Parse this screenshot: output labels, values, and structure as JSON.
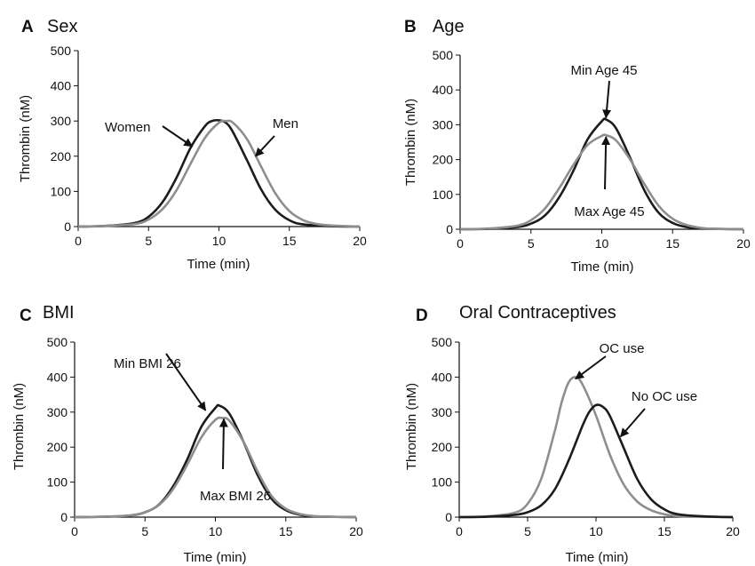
{
  "chart_data": [
    {
      "type": "line",
      "panel_letter": "A",
      "title": "Sex",
      "xlabel": "Time (min)",
      "ylabel": "Thrombin (nM)",
      "xlim": [
        0,
        20
      ],
      "ylim": [
        0,
        500
      ],
      "xticks": [
        "0",
        "5",
        "10",
        "15",
        "20"
      ],
      "yticks": [
        "0",
        "100",
        "200",
        "300",
        "400",
        "500"
      ],
      "grid": false,
      "series": [
        {
          "label": "Women",
          "color": "#1c1c1c",
          "x": [
            0,
            2,
            4,
            5,
            6,
            7,
            8,
            9,
            9.5,
            10,
            10.5,
            11,
            12,
            13,
            14,
            15,
            16,
            18,
            20
          ],
          "y": [
            0,
            2,
            10,
            28,
            70,
            140,
            225,
            285,
            300,
            302,
            295,
            268,
            188,
            105,
            48,
            18,
            6,
            1,
            0
          ]
        },
        {
          "label": "Men",
          "color": "#8e8e8e",
          "x": [
            0,
            2,
            4,
            5,
            6,
            7,
            8,
            9,
            10,
            10.5,
            11,
            12,
            13,
            14,
            15,
            16,
            17,
            18,
            20
          ],
          "y": [
            0,
            2,
            7,
            20,
            50,
            104,
            180,
            252,
            295,
            300,
            295,
            248,
            170,
            95,
            44,
            18,
            7,
            3,
            0
          ]
        }
      ],
      "annotations": [
        {
          "text": "Women",
          "points_to": {
            "x": 8.1,
            "y": 228
          }
        },
        {
          "text": "Men",
          "points_to": {
            "x": 12.6,
            "y": 200
          }
        }
      ]
    },
    {
      "type": "line",
      "panel_letter": "B",
      "title": "Age",
      "xlabel": "Time (min)",
      "ylabel": "Thrombin (nM)",
      "xlim": [
        0,
        20
      ],
      "ylim": [
        0,
        500
      ],
      "xticks": [
        "0",
        "5",
        "10",
        "15",
        "20"
      ],
      "yticks": [
        "0",
        "100",
        "200",
        "300",
        "400",
        "500"
      ],
      "grid": false,
      "series": [
        {
          "label": "Min Age 45",
          "color": "#1c1c1c",
          "x": [
            0,
            2,
            4,
            5,
            6,
            7,
            8,
            9,
            10,
            10.3,
            11,
            12,
            13,
            14,
            15,
            16,
            17,
            18,
            20
          ],
          "y": [
            0,
            1,
            6,
            16,
            40,
            92,
            168,
            258,
            310,
            315,
            290,
            205,
            112,
            48,
            18,
            6,
            2,
            1,
            0
          ]
        },
        {
          "label": "Max Age 45",
          "color": "#8e8e8e",
          "x": [
            0,
            2,
            4,
            5,
            6,
            7,
            8,
            9,
            10,
            10.3,
            11,
            12,
            13,
            14,
            15,
            16,
            17,
            18,
            20
          ],
          "y": [
            0,
            2,
            10,
            26,
            60,
            118,
            185,
            242,
            268,
            270,
            255,
            200,
            130,
            68,
            30,
            12,
            4,
            1,
            0
          ]
        }
      ],
      "annotations": [
        {
          "text": "Min Age 45",
          "points_to": {
            "x": 10.3,
            "y": 320
          }
        },
        {
          "text": "Max Age 45",
          "points_to": {
            "x": 10.3,
            "y": 265
          }
        }
      ]
    },
    {
      "type": "line",
      "panel_letter": "C",
      "title": "BMI",
      "xlabel": "Time (min)",
      "ylabel": "Thrombin (nM)",
      "xlim": [
        0,
        20
      ],
      "ylim": [
        0,
        500
      ],
      "xticks": [
        "0",
        "5",
        "10",
        "15",
        "20"
      ],
      "yticks": [
        "0",
        "100",
        "200",
        "300",
        "400",
        "500"
      ],
      "grid": false,
      "series": [
        {
          "label": "Min BMI 26",
          "color": "#1c1c1c",
          "x": [
            0,
            2,
            4,
            5,
            6,
            7,
            8,
            9,
            10,
            10.3,
            11,
            12,
            13,
            14,
            15,
            16,
            17,
            18,
            20
          ],
          "y": [
            0,
            1,
            5,
            14,
            36,
            88,
            165,
            258,
            312,
            318,
            295,
            215,
            120,
            52,
            20,
            7,
            2,
            1,
            0
          ]
        },
        {
          "label": "Max BMI 26",
          "color": "#8e8e8e",
          "x": [
            0,
            2,
            4,
            5,
            6,
            7,
            8,
            9,
            10,
            10.5,
            11,
            12,
            13,
            14,
            15,
            16,
            17,
            18,
            20
          ],
          "y": [
            0,
            1,
            5,
            14,
            35,
            80,
            150,
            228,
            278,
            283,
            275,
            215,
            130,
            60,
            24,
            9,
            3,
            1,
            0
          ]
        }
      ],
      "annotations": [
        {
          "text": "Min BMI 26",
          "points_to": {
            "x": 9.3,
            "y": 305
          }
        },
        {
          "text": "Max BMI 26",
          "points_to": {
            "x": 10.6,
            "y": 280
          }
        }
      ]
    },
    {
      "type": "line",
      "panel_letter": "D",
      "title": "Oral Contraceptives",
      "xlabel": "Time (min)",
      "ylabel": "Thrombin (nM)",
      "xlim": [
        0,
        20
      ],
      "ylim": [
        0,
        500
      ],
      "xticks": [
        "0",
        "5",
        "10",
        "15",
        "20"
      ],
      "yticks": [
        "0",
        "100",
        "200",
        "300",
        "400",
        "500"
      ],
      "grid": false,
      "series": [
        {
          "label": "OC use",
          "color": "#8e8e8e",
          "x": [
            0,
            2,
            4,
            5,
            6,
            7,
            7.5,
            8,
            8.5,
            9,
            10,
            11,
            12,
            13,
            14,
            15,
            16,
            18,
            20
          ],
          "y": [
            0,
            2,
            12,
            38,
            110,
            248,
            330,
            385,
            400,
            380,
            290,
            180,
            95,
            45,
            20,
            8,
            3,
            1,
            0
          ]
        },
        {
          "label": "No OC use",
          "color": "#1c1c1c",
          "x": [
            0,
            2,
            4,
            5,
            6,
            7,
            8,
            9,
            9.5,
            10,
            10.5,
            11,
            12,
            13,
            14,
            15,
            16,
            18,
            20
          ],
          "y": [
            0,
            1,
            6,
            14,
            34,
            80,
            162,
            260,
            300,
            320,
            315,
            290,
            200,
            110,
            52,
            22,
            8,
            2,
            0
          ]
        }
      ],
      "annotations": [
        {
          "text": "OC use",
          "points_to": {
            "x": 8.5,
            "y": 395
          }
        },
        {
          "text": "No OC use",
          "points_to": {
            "x": 11.8,
            "y": 230
          }
        }
      ]
    }
  ]
}
